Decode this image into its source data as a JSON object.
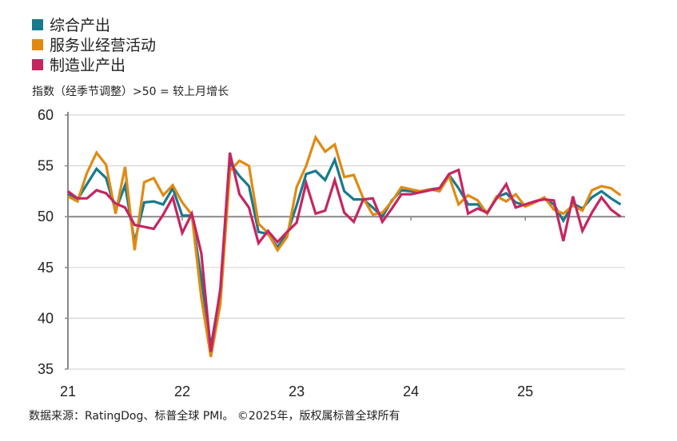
{
  "legend": [
    {
      "name": "综合产出",
      "color": "#177a8e"
    },
    {
      "name": "服务业经营活动",
      "color": "#e08a12"
    },
    {
      "name": "制造业产出",
      "color": "#c62560"
    }
  ],
  "subtitle": "指数（经季节调整）>50 = 较上月增长",
  "source": "数据来源：RatingDog、标普全球 PMI。 ©2025年，版权属标普全球所有",
  "chart_data": {
    "type": "line",
    "x_start": "2021-01",
    "x_end": "2025-11",
    "frequency": "monthly",
    "xtick_labels": [
      "21",
      "22",
      "23",
      "24",
      "25"
    ],
    "ytick_labels": [
      "35",
      "40",
      "45",
      "50",
      "55",
      "60"
    ],
    "ylim": [
      35,
      60
    ],
    "reference_line": 50,
    "grid": "horizontal",
    "series": [
      {
        "name": "综合产出",
        "color": "#177a8e",
        "values": [
          52.2,
          51.7,
          53.2,
          54.7,
          53.8,
          50.6,
          53.1,
          47.5,
          51.4,
          51.5,
          51.2,
          52.8,
          50.1,
          50.1,
          43.9,
          37.2,
          42.7,
          55.3,
          54.0,
          53.0,
          48.5,
          48.3,
          47.0,
          48.3,
          51.1,
          54.2,
          54.5,
          53.6,
          55.6,
          52.5,
          51.7,
          51.7,
          50.9,
          50.0,
          51.6,
          52.6,
          52.5,
          52.5,
          52.7,
          52.8,
          54.1,
          52.8,
          51.2,
          51.2,
          50.3,
          51.9,
          52.3,
          51.4,
          51.1,
          51.5,
          51.8,
          51.2,
          49.6,
          51.3,
          50.8,
          51.9,
          52.5,
          51.8,
          51.2
        ]
      },
      {
        "name": "服务业经营活动",
        "color": "#e08a12",
        "values": [
          52.0,
          51.5,
          54.3,
          56.3,
          55.1,
          50.3,
          54.9,
          46.7,
          53.4,
          53.8,
          52.1,
          53.1,
          51.4,
          50.2,
          42.0,
          36.2,
          41.4,
          54.5,
          55.5,
          55.0,
          49.3,
          48.4,
          46.7,
          48.0,
          52.9,
          55.0,
          57.8,
          56.4,
          57.1,
          53.9,
          54.1,
          51.8,
          50.2,
          50.4,
          51.5,
          52.9,
          52.7,
          52.5,
          52.7,
          52.5,
          54.0,
          51.2,
          52.1,
          51.6,
          50.3,
          52.0,
          51.5,
          52.2,
          51.0,
          51.4,
          51.9,
          50.7,
          50.3,
          51.1,
          50.6,
          52.6,
          53.0,
          52.8,
          52.1
        ]
      },
      {
        "name": "制造业产出",
        "color": "#c62560",
        "values": [
          52.5,
          51.8,
          51.8,
          52.6,
          52.3,
          51.3,
          50.9,
          49.2,
          49.0,
          48.8,
          50.2,
          51.9,
          48.4,
          50.3,
          46.4,
          36.7,
          42.9,
          56.3,
          52.2,
          50.9,
          47.4,
          48.6,
          47.5,
          48.5,
          49.4,
          53.3,
          50.3,
          50.6,
          53.6,
          50.4,
          49.5,
          51.7,
          51.8,
          49.5,
          50.8,
          52.2,
          52.2,
          52.4,
          52.6,
          52.8,
          54.2,
          54.6,
          50.3,
          50.8,
          50.4,
          51.8,
          53.2,
          50.9,
          51.2,
          51.5,
          51.7,
          51.6,
          47.6,
          52.0,
          48.6,
          50.4,
          51.9,
          50.7,
          50.0
        ]
      }
    ]
  }
}
